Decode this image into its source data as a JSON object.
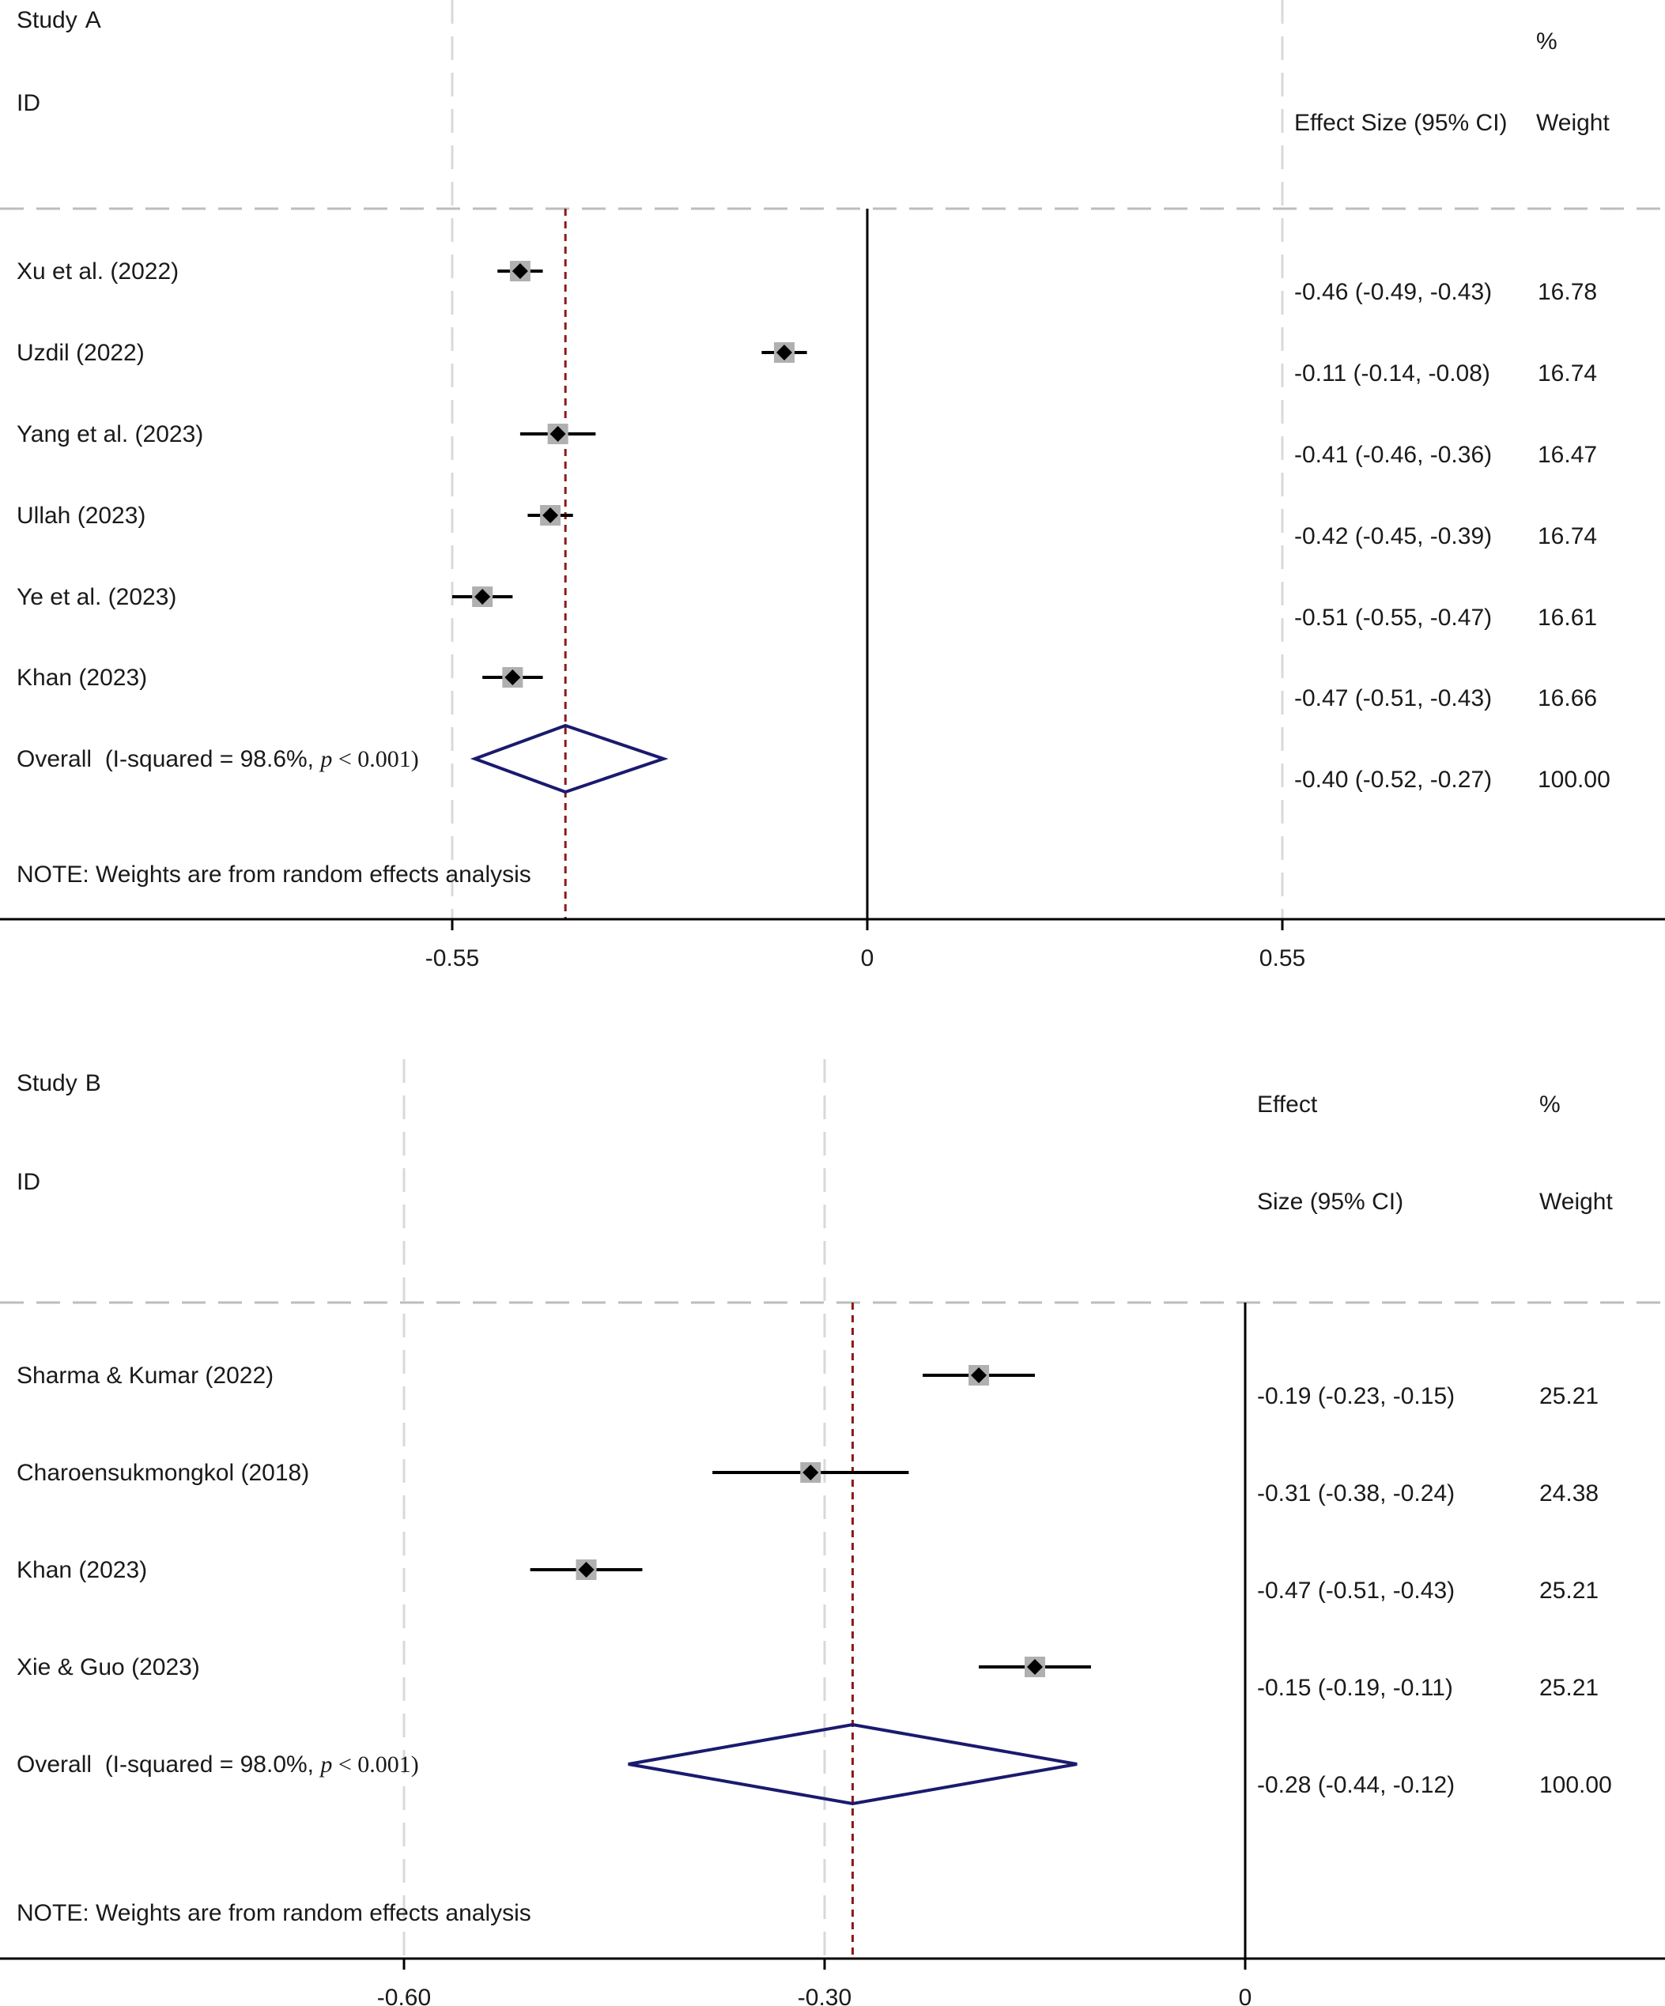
{
  "colors": {
    "ci_line": "#000000",
    "point": "#000000",
    "weight_box": "#b0b0b0",
    "diamond": "#1a1a6e",
    "overall_ref": "#8b1a1a",
    "grid": "#d9d9d9",
    "axis": "#000000"
  },
  "chart_data": [
    {
      "type": "forest",
      "panel": "Study A",
      "header": {
        "study": "Study",
        "letter": "A",
        "id": "ID",
        "effect": "Effect Size (95% CI)",
        "pct": "%",
        "weight": "Weight"
      },
      "x_ticks": [
        {
          "value": -0.55,
          "label": "-0.55"
        },
        {
          "value": 0,
          "label": "0"
        },
        {
          "value": 0.55,
          "label": "0.55"
        }
      ],
      "xlim": [
        -1.1,
        1.0
      ],
      "overall_line": -0.4,
      "studies": [
        {
          "name": "Xu et al. (2022)",
          "es": -0.46,
          "lo": -0.49,
          "hi": -0.43,
          "ci_text": "-0.46 (-0.49, -0.43)",
          "weight": "16.78"
        },
        {
          "name": "Uzdil (2022)",
          "es": -0.11,
          "lo": -0.14,
          "hi": -0.08,
          "ci_text": "-0.11 (-0.14, -0.08)",
          "weight": "16.74"
        },
        {
          "name": "Yang et al. (2023)",
          "es": -0.41,
          "lo": -0.46,
          "hi": -0.36,
          "ci_text": "-0.41 (-0.46, -0.36)",
          "weight": "16.47"
        },
        {
          "name": "Ullah (2023)",
          "es": -0.42,
          "lo": -0.45,
          "hi": -0.39,
          "ci_text": "-0.42 (-0.45, -0.39)",
          "weight": "16.74"
        },
        {
          "name": "Ye et al. (2023)",
          "es": -0.51,
          "lo": -0.55,
          "hi": -0.47,
          "ci_text": "-0.51 (-0.55, -0.47)",
          "weight": "16.61"
        },
        {
          "name": "Khan (2023)",
          "es": -0.47,
          "lo": -0.51,
          "hi": -0.43,
          "ci_text": "-0.47 (-0.51, -0.43)",
          "weight": "16.66"
        }
      ],
      "overall": {
        "label_pre": "Overall  (I-squared = 98.6%, ",
        "p_symbol": "p",
        "label_post": " < 0.001)",
        "es": -0.4,
        "lo": -0.52,
        "hi": -0.27,
        "ci_text": "-0.40 (-0.52, -0.27)",
        "weight": "100.00"
      },
      "note": "NOTE: Weights are from random effects analysis"
    },
    {
      "type": "forest",
      "panel": "Study B",
      "header": {
        "study": "Study",
        "letter": "B",
        "id": "ID",
        "effect": "Effect",
        "effect2": "Size (95% CI)",
        "pct": "%",
        "weight": "Weight"
      },
      "x_ticks": [
        {
          "value": -0.6,
          "label": "-0.60"
        },
        {
          "value": -0.3,
          "label": "-0.30"
        },
        {
          "value": 0,
          "label": "0"
        }
      ],
      "xlim": [
        -0.89,
        0.3
      ],
      "overall_line": -0.28,
      "studies": [
        {
          "name": "Sharma & Kumar (2022)",
          "es": -0.19,
          "lo": -0.23,
          "hi": -0.15,
          "ci_text": "-0.19 (-0.23, -0.15)",
          "weight": "25.21"
        },
        {
          "name": "Charoensukmongkol (2018)",
          "es": -0.31,
          "lo": -0.38,
          "hi": -0.24,
          "ci_text": "-0.31 (-0.38, -0.24)",
          "weight": "24.38"
        },
        {
          "name": "Khan (2023)",
          "es": -0.47,
          "lo": -0.51,
          "hi": -0.43,
          "ci_text": "-0.47 (-0.51, -0.43)",
          "weight": "25.21"
        },
        {
          "name": "Xie & Guo (2023)",
          "es": -0.15,
          "lo": -0.19,
          "hi": -0.11,
          "ci_text": "-0.15 (-0.19, -0.11)",
          "weight": "25.21"
        }
      ],
      "overall": {
        "label_pre": "Overall  (I-squared = 98.0%, ",
        "p_symbol": "p",
        "label_post": " < 0.001)",
        "es": -0.28,
        "lo": -0.44,
        "hi": -0.12,
        "ci_text": "-0.28 (-0.44, -0.12)",
        "weight": "100.00"
      },
      "note": "NOTE: Weights are from random effects analysis"
    }
  ]
}
